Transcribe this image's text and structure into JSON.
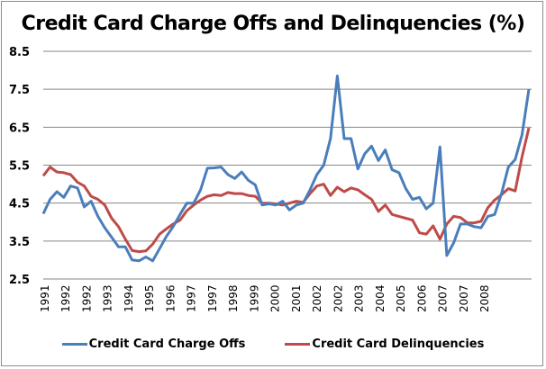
{
  "chart_data": {
    "type": "line",
    "title": "Credit Card Charge Offs and Delinquencies (%)",
    "xlabel": "",
    "ylabel": "",
    "ylim": [
      2.5,
      8.5
    ],
    "yticks": [
      "2.5",
      "3.5",
      "4.5",
      "5.5",
      "6.5",
      "7.5",
      "8.5"
    ],
    "ytick_values": [
      2.5,
      3.5,
      4.5,
      5.5,
      6.5,
      7.5,
      8.5
    ],
    "xtick_labels": [
      "1991",
      "1992",
      "1992",
      "1993",
      "1994",
      "1995",
      "1996",
      "1997",
      "1997",
      "1998",
      "1999",
      "2000",
      "2001",
      "2002",
      "2002",
      "2003",
      "2004",
      "2005",
      "2006",
      "2007",
      "2007",
      "2008"
    ],
    "grid": true,
    "legend_position": "bottom",
    "series": [
      {
        "name": "Credit Card Charge Offs",
        "color": "#4a7ebb",
        "values": [
          4.22,
          4.6,
          4.8,
          4.65,
          4.95,
          4.9,
          4.4,
          4.55,
          4.15,
          3.85,
          3.6,
          3.35,
          3.35,
          3.0,
          2.98,
          3.08,
          2.98,
          3.3,
          3.62,
          3.88,
          4.2,
          4.5,
          4.5,
          4.85,
          5.42,
          5.43,
          5.45,
          5.25,
          5.15,
          5.32,
          5.1,
          4.98,
          4.45,
          4.48,
          4.45,
          4.55,
          4.32,
          4.45,
          4.5,
          4.85,
          5.25,
          5.5,
          6.2,
          7.85,
          6.2,
          6.2,
          5.4,
          5.8,
          6.0,
          5.62,
          5.9,
          5.38,
          5.3,
          4.88,
          4.6,
          4.65,
          4.35,
          4.5,
          5.98,
          3.12,
          3.45,
          3.95,
          3.95,
          3.88,
          3.85,
          4.15,
          4.2,
          4.75,
          5.45,
          5.65,
          6.3,
          7.5
        ]
      },
      {
        "name": "Credit Card Delinquencies",
        "color": "#be4b48",
        "values": [
          5.22,
          5.45,
          5.32,
          5.3,
          5.25,
          5.05,
          4.95,
          4.68,
          4.6,
          4.45,
          4.1,
          3.88,
          3.55,
          3.25,
          3.22,
          3.24,
          3.42,
          3.68,
          3.82,
          3.95,
          4.05,
          4.3,
          4.45,
          4.58,
          4.68,
          4.72,
          4.7,
          4.78,
          4.75,
          4.75,
          4.7,
          4.68,
          4.5,
          4.5,
          4.48,
          4.45,
          4.5,
          4.55,
          4.52,
          4.75,
          4.95,
          5.0,
          4.7,
          4.92,
          4.8,
          4.9,
          4.85,
          4.72,
          4.6,
          4.28,
          4.45,
          4.2,
          4.15,
          4.1,
          4.05,
          3.72,
          3.68,
          3.9,
          3.55,
          3.95,
          4.15,
          4.12,
          3.98,
          3.98,
          4.02,
          4.38,
          4.58,
          4.72,
          4.88,
          4.82,
          5.72,
          6.48
        ]
      }
    ]
  }
}
